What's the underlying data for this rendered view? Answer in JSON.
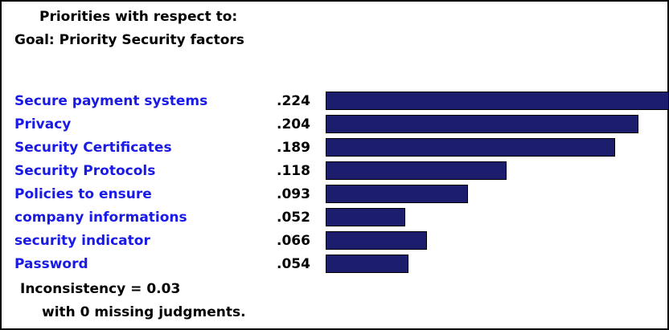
{
  "header": {
    "line1": "Priorities with respect to:",
    "line2": "Goal: Priority Security factors"
  },
  "chart_data": {
    "type": "bar",
    "orientation": "horizontal",
    "categories": [
      "Secure payment systems",
      "Privacy",
      "Security Certificates",
      "Security Protocols",
      "Policies to ensure",
      "company informations",
      "security indicator",
      "Password"
    ],
    "value_labels": [
      ".224",
      ".204",
      ".189",
      ".118",
      ".093",
      ".052",
      ".066",
      ".054"
    ],
    "values": [
      0.224,
      0.204,
      0.189,
      0.118,
      0.093,
      0.052,
      0.066,
      0.054
    ],
    "xlim": [
      0,
      0.224
    ],
    "grid": false,
    "colors": {
      "bar_fill": "#1d1d6e",
      "label_text": "#1a1ae6",
      "value_text": "#000000"
    }
  },
  "footer": {
    "inconsistency": "Inconsistency = 0.03",
    "missing": "with 0  missing judgments."
  }
}
